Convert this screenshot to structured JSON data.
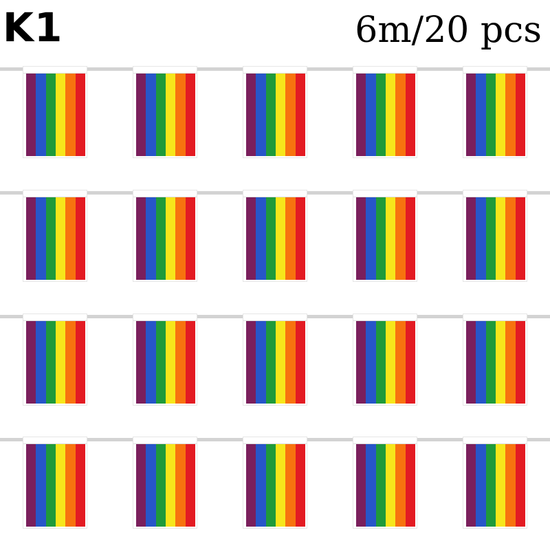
{
  "header": {
    "model_label": "K1",
    "spec_label": "6m/20 pcs"
  },
  "bunting": {
    "rows": 4,
    "flags_per_row": 5,
    "stripe_colors": [
      "#7a1f5c",
      "#2756c9",
      "#1f9a3a",
      "#f6e61b",
      "#f7730f",
      "#e31b23"
    ],
    "string_color": "#d3d3d3"
  }
}
